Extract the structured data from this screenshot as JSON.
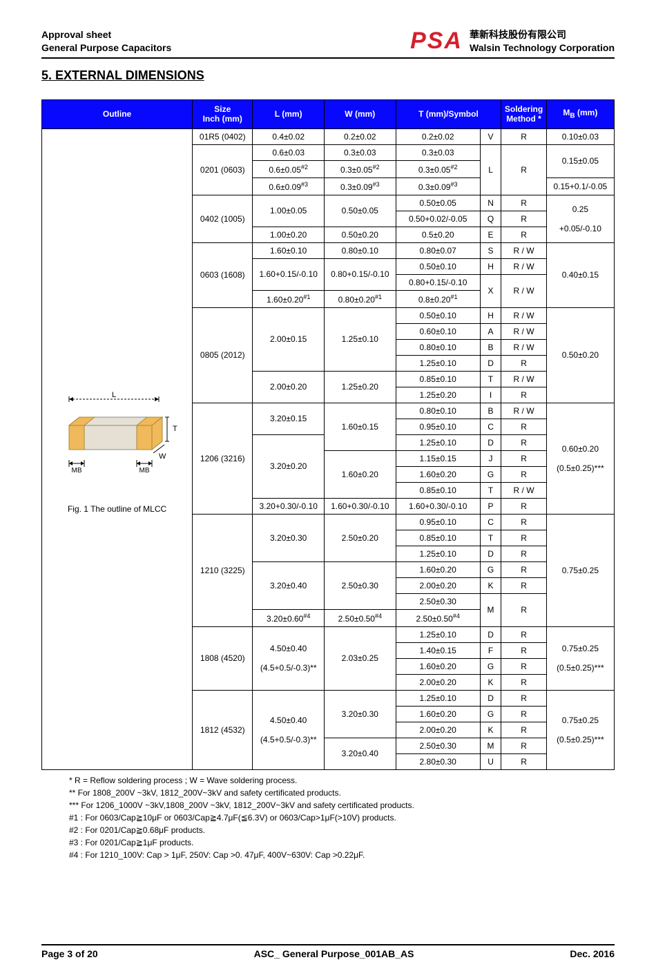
{
  "header": {
    "line1": "Approval sheet",
    "line2": "General Purpose Capacitors",
    "logo_text": "PSA",
    "corp_zh": "華新科技股份有限公司",
    "corp_en": "Walsin Technology Corporation"
  },
  "section_title": "5. EXTERNAL DIMENSIONS",
  "columns": {
    "outline": "Outline",
    "size": "Size\nInch (mm)",
    "L": "L (mm)",
    "W": "W (mm)",
    "T": "T (mm)/Symbol",
    "method": "Soldering Method *",
    "MB": "MB (mm)"
  },
  "diagram_caption": "Fig. 1 The outline of MLCC",
  "diagram_labels": {
    "L": "L",
    "W": "W",
    "T": "T",
    "MB": "MB"
  },
  "sizes": [
    {
      "size": "01R5 (0402)",
      "rows": [
        {
          "L": "0.4±0.02",
          "W": "0.2±0.02",
          "T": "0.2±0.02",
          "sym": "V",
          "meth": "R",
          "MB": "0.10±0.03"
        }
      ]
    },
    {
      "size": "0201 (0603)",
      "rows": [
        {
          "L": "0.6±0.03",
          "W": "0.3±0.03",
          "T": "0.3±0.03",
          "sym": "L",
          "meth": "R",
          "MB": "0.15±0.05",
          "sym_rs": 3,
          "meth_rs": 3,
          "MB_rs": 2
        },
        {
          "L": "0.6±0.05",
          "L_sup": "#2",
          "W": "0.3±0.05",
          "W_sup": "#2",
          "T": "0.3±0.05",
          "T_sup": "#2"
        },
        {
          "L": "0.6±0.09",
          "L_sup": "#3",
          "W": "0.3±0.09",
          "W_sup": "#3",
          "T": "0.3±0.09",
          "T_sup": "#3",
          "MB": "0.15+0.1/-0.05"
        }
      ]
    },
    {
      "size": "0402 (1005)",
      "rows": [
        {
          "L": "1.00±0.05",
          "L_rs": 2,
          "W": "0.50±0.05",
          "W_rs": 2,
          "T": "0.50±0.05",
          "sym": "N",
          "meth": "R",
          "MB": "0.25",
          "MB_br": "+0.05/-0.10",
          "MB_rs": 3
        },
        {
          "T": "0.50+0.02/-0.05",
          "sym": "Q",
          "meth": "R"
        },
        {
          "L": "1.00±0.20",
          "W": "0.50±0.20",
          "T": "0.5±0.20",
          "sym": "E",
          "meth": "R"
        }
      ]
    },
    {
      "size": "0603 (1608)",
      "rows": [
        {
          "L": "1.60±0.10",
          "W": "0.80±0.10",
          "T": "0.80±0.07",
          "sym": "S",
          "meth": "R / W",
          "MB": "0.40±0.15",
          "MB_rs": 4
        },
        {
          "L": "1.60+0.15/-0.10",
          "L_rs": 2,
          "W": "0.80+0.15/-0.10",
          "W_rs": 2,
          "T": "0.50±0.10",
          "sym": "H",
          "meth": "R / W"
        },
        {
          "T": "0.80+0.15/-0.10",
          "sym": "X",
          "sym_rs": 2,
          "meth": "R / W",
          "meth_rs": 2
        },
        {
          "L": "1.60±0.20",
          "L_sup": "#1",
          "W": "0.80±0.20",
          "W_sup": "#1",
          "T": "0.8±0.20",
          "T_sup": "#1"
        }
      ]
    },
    {
      "size": "0805 (2012)",
      "rows": [
        {
          "L": "2.00±0.15",
          "L_rs": 4,
          "W": "1.25±0.10",
          "W_rs": 4,
          "T": "0.50±0.10",
          "sym": "H",
          "meth": "R / W",
          "MB": "0.50±0.20",
          "MB_rs": 6
        },
        {
          "T": "0.60±0.10",
          "sym": "A",
          "meth": "R / W"
        },
        {
          "T": "0.80±0.10",
          "sym": "B",
          "meth": "R / W"
        },
        {
          "T": "1.25±0.10",
          "sym": "D",
          "meth": "R"
        },
        {
          "L": "2.00±0.20",
          "L_rs": 2,
          "W": "1.25±0.20",
          "W_rs": 2,
          "T": "0.85±0.10",
          "sym": "T",
          "meth": "R / W"
        },
        {
          "T": "1.25±0.20",
          "sym": "I",
          "meth": "R"
        }
      ]
    },
    {
      "size": "1206 (3216)",
      "rows": [
        {
          "L": "3.20±0.15",
          "L_rs": 2,
          "W": "1.60±0.15",
          "W_rs": 3,
          "T": "0.80±0.10",
          "sym": "B",
          "meth": "R / W",
          "MB": "0.60±0.20",
          "MB_br": "(0.5±0.25)***",
          "MB_rs": 7
        },
        {
          "T": "0.95±0.10",
          "sym": "C",
          "meth": "R"
        },
        {
          "L": "3.20±0.20",
          "L_rs": 4,
          "T": "1.25±0.10",
          "sym": "D",
          "meth": "R"
        },
        {
          "W": "1.60±0.20",
          "W_rs": 3,
          "T": "1.15±0.15",
          "sym": "J",
          "meth": "R"
        },
        {
          "T": "1.60±0.20",
          "sym": "G",
          "meth": "R"
        },
        {
          "T": "0.85±0.10",
          "sym": "T",
          "meth": "R / W"
        },
        {
          "L": "3.20+0.30/-0.10",
          "W": "1.60+0.30/-0.10",
          "T": "1.60+0.30/-0.10",
          "sym": "P",
          "meth": "R"
        }
      ]
    },
    {
      "size": "1210 (3225)",
      "rows": [
        {
          "L": "3.20±0.30",
          "L_rs": 3,
          "W": "2.50±0.20",
          "W_rs": 3,
          "T": "0.95±0.10",
          "sym": "C",
          "meth": "R",
          "MB": "0.75±0.25",
          "MB_rs": 7
        },
        {
          "T": "0.85±0.10",
          "sym": "T",
          "meth": "R"
        },
        {
          "T": "1.25±0.10",
          "sym": "D",
          "meth": "R"
        },
        {
          "L": "3.20±0.40",
          "L_rs": 3,
          "W": "2.50±0.30",
          "W_rs": 3,
          "T": "1.60±0.20",
          "sym": "G",
          "meth": "R"
        },
        {
          "T": "2.00±0.20",
          "sym": "K",
          "meth": "R"
        },
        {
          "T": "2.50±0.30",
          "sym": "M",
          "sym_rs": 2,
          "meth": "R",
          "meth_rs": 2
        },
        {
          "L": "3.20±0.60",
          "L_sup": "#4",
          "W": "2.50±0.50",
          "W_sup": "#4",
          "T": "2.50±0.50",
          "T_sup": "#4"
        }
      ]
    },
    {
      "size": "1808 (4520)",
      "rows": [
        {
          "L": "4.50±0.40",
          "L_br": "(4.5+0.5/-0.3)**",
          "L_rs": 4,
          "W": "2.03±0.25",
          "W_rs": 4,
          "T": "1.25±0.10",
          "sym": "D",
          "meth": "R",
          "MB": "0.75±0.25",
          "MB_br": "(0.5±0.25)***",
          "MB_rs": 4
        },
        {
          "T": "1.40±0.15",
          "sym": "F",
          "meth": "R"
        },
        {
          "T": "1.60±0.20",
          "sym": "G",
          "meth": "R"
        },
        {
          "T": "2.00±0.20",
          "sym": "K",
          "meth": "R"
        }
      ]
    },
    {
      "size": "1812 (4532)",
      "rows": [
        {
          "L": "4.50±0.40",
          "L_br": "(4.5+0.5/-0.3)**",
          "L_rs": 5,
          "W": "3.20±0.30",
          "W_rs": 3,
          "T": "1.25±0.10",
          "sym": "D",
          "meth": "R",
          "MB": "0.75±0.25",
          "MB_br": "(0.5±0.25)***",
          "MB_rs": 5
        },
        {
          "T": "1.60±0.20",
          "sym": "G",
          "meth": "R"
        },
        {
          "T": "2.00±0.20",
          "sym": "K",
          "meth": "R"
        },
        {
          "W": "3.20±0.40",
          "W_rs": 2,
          "T": "2.50±0.30",
          "sym": "M",
          "meth": "R"
        },
        {
          "T": "2.80±0.30",
          "sym": "U",
          "meth": "R"
        }
      ]
    }
  ],
  "notes": [
    "* R = Reflow soldering process ; W = Wave soldering process.",
    "** For 1808_200V ~3kV, 1812_200V~3kV and safety certificated products.",
    "*** For 1206_1000V ~3kV,1808_200V ~3kV, 1812_200V~3kV and safety certificated products.",
    "#1 : For 0603/Cap≧10μF or 0603/Cap≧4.7μF(≦6.3V) or 0603/Cap>1μF(>10V) products.",
    "#2 : For 0201/Cap≧0.68μF products.",
    "#3 : For 0201/Cap≧1μF products.",
    "#4 : For 1210_100V: Cap > 1μF, 250V: Cap >0. 47μF, 400V~630V: Cap >0.22μF."
  ],
  "footer": {
    "left": "Page 3 of 20",
    "mid": "ASC_ General Purpose_001AB_AS",
    "right": "Dec. 2016"
  },
  "colors": {
    "header_bg": "#0808ff",
    "accent": "#d4202c",
    "chip_body": "#e6e0d4",
    "chip_term": "#f0b95b"
  }
}
